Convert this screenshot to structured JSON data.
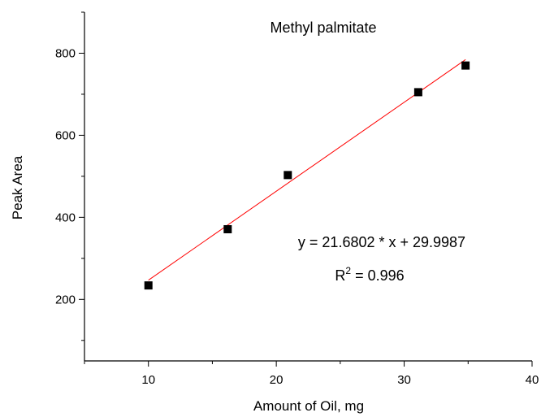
{
  "chart_data": {
    "type": "scatter",
    "title": "Methyl palmitate",
    "xlabel": "Amount of Oil, mg",
    "ylabel": "Peak Area",
    "xlim": [
      5,
      40
    ],
    "ylim": [
      50,
      900
    ],
    "xticks": [
      10,
      20,
      30,
      40
    ],
    "yticks": [
      200,
      400,
      600,
      800
    ],
    "x_minor_ticks": [
      5,
      15,
      25,
      35
    ],
    "y_minor_ticks": [
      100,
      300,
      500,
      700,
      900
    ],
    "grid": false,
    "points": [
      {
        "x": 10.0,
        "y": 234
      },
      {
        "x": 16.2,
        "y": 371
      },
      {
        "x": 20.9,
        "y": 503
      },
      {
        "x": 31.1,
        "y": 705
      },
      {
        "x": 34.8,
        "y": 770
      }
    ],
    "marker_color": "#000000",
    "fit_line": {
      "slope": 21.6802,
      "intercept": 29.9987,
      "x_range": [
        10.0,
        34.8
      ],
      "color": "#ff0000"
    },
    "equation_text": "y = 21.6802 * x + 29.9987",
    "r2_prefix": "R",
    "r2_superscript": "2",
    "r2_value": " = 0.996"
  }
}
